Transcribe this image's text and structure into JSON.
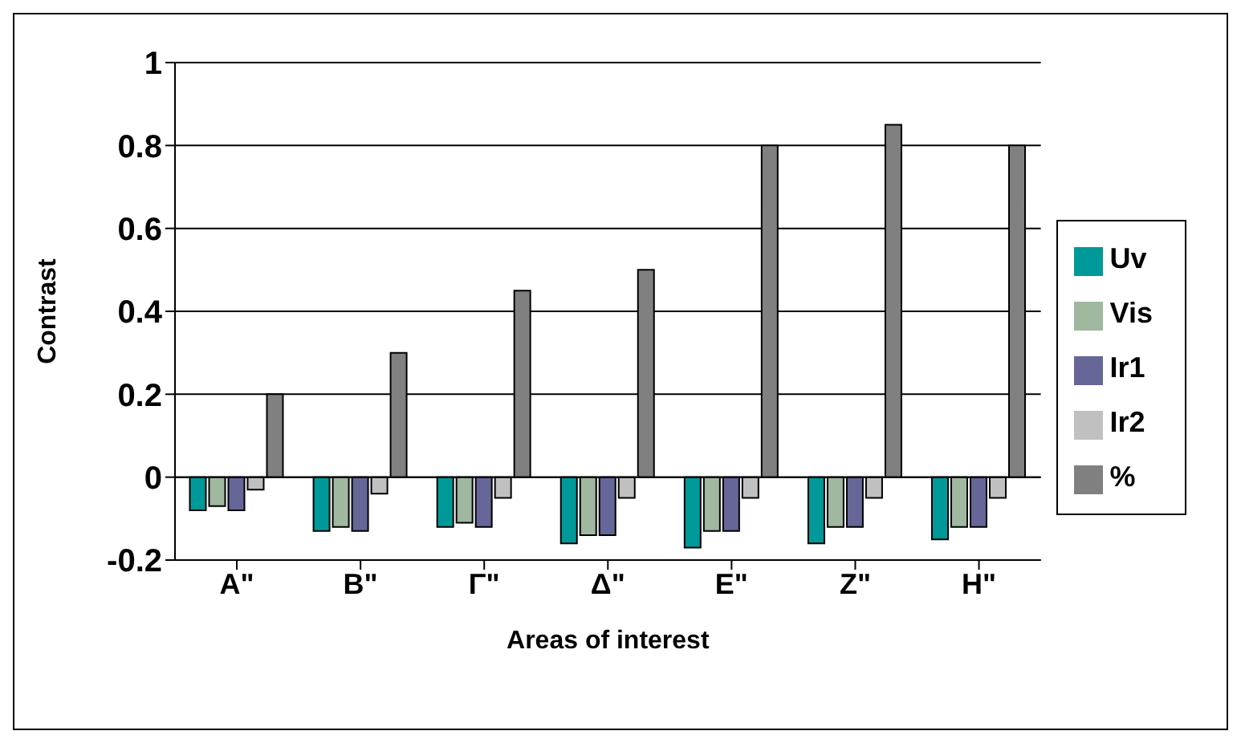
{
  "chart_data": {
    "type": "bar",
    "xlabel": "Areas of interest",
    "ylabel": "Contrast",
    "categories": [
      "A\"",
      "B\"",
      "Γ\"",
      "Δ\"",
      "E\"",
      "Z\"",
      "H\""
    ],
    "series": [
      {
        "name": "Uv",
        "color": "#009999",
        "values": [
          -0.08,
          -0.13,
          -0.12,
          -0.16,
          -0.17,
          -0.16,
          -0.15
        ]
      },
      {
        "name": "Vis",
        "color": "#9fb89f",
        "values": [
          -0.07,
          -0.12,
          -0.11,
          -0.14,
          -0.13,
          -0.12,
          -0.12
        ]
      },
      {
        "name": "Ir1",
        "color": "#666699",
        "values": [
          -0.08,
          -0.13,
          -0.12,
          -0.14,
          -0.13,
          -0.12,
          -0.12
        ]
      },
      {
        "name": "Ir2",
        "color": "#c0c0c0",
        "values": [
          -0.03,
          -0.04,
          -0.05,
          -0.05,
          -0.05,
          -0.05,
          -0.05
        ]
      },
      {
        "name": "%",
        "color": "#808080",
        "values": [
          0.2,
          0.3,
          0.45,
          0.5,
          0.8,
          0.85,
          0.8
        ]
      }
    ],
    "ylim": [
      -0.2,
      1
    ],
    "yticks": [
      -0.2,
      0,
      0.2,
      0.4,
      0.6,
      0.8,
      1
    ],
    "grid": "y",
    "legend": "right"
  }
}
